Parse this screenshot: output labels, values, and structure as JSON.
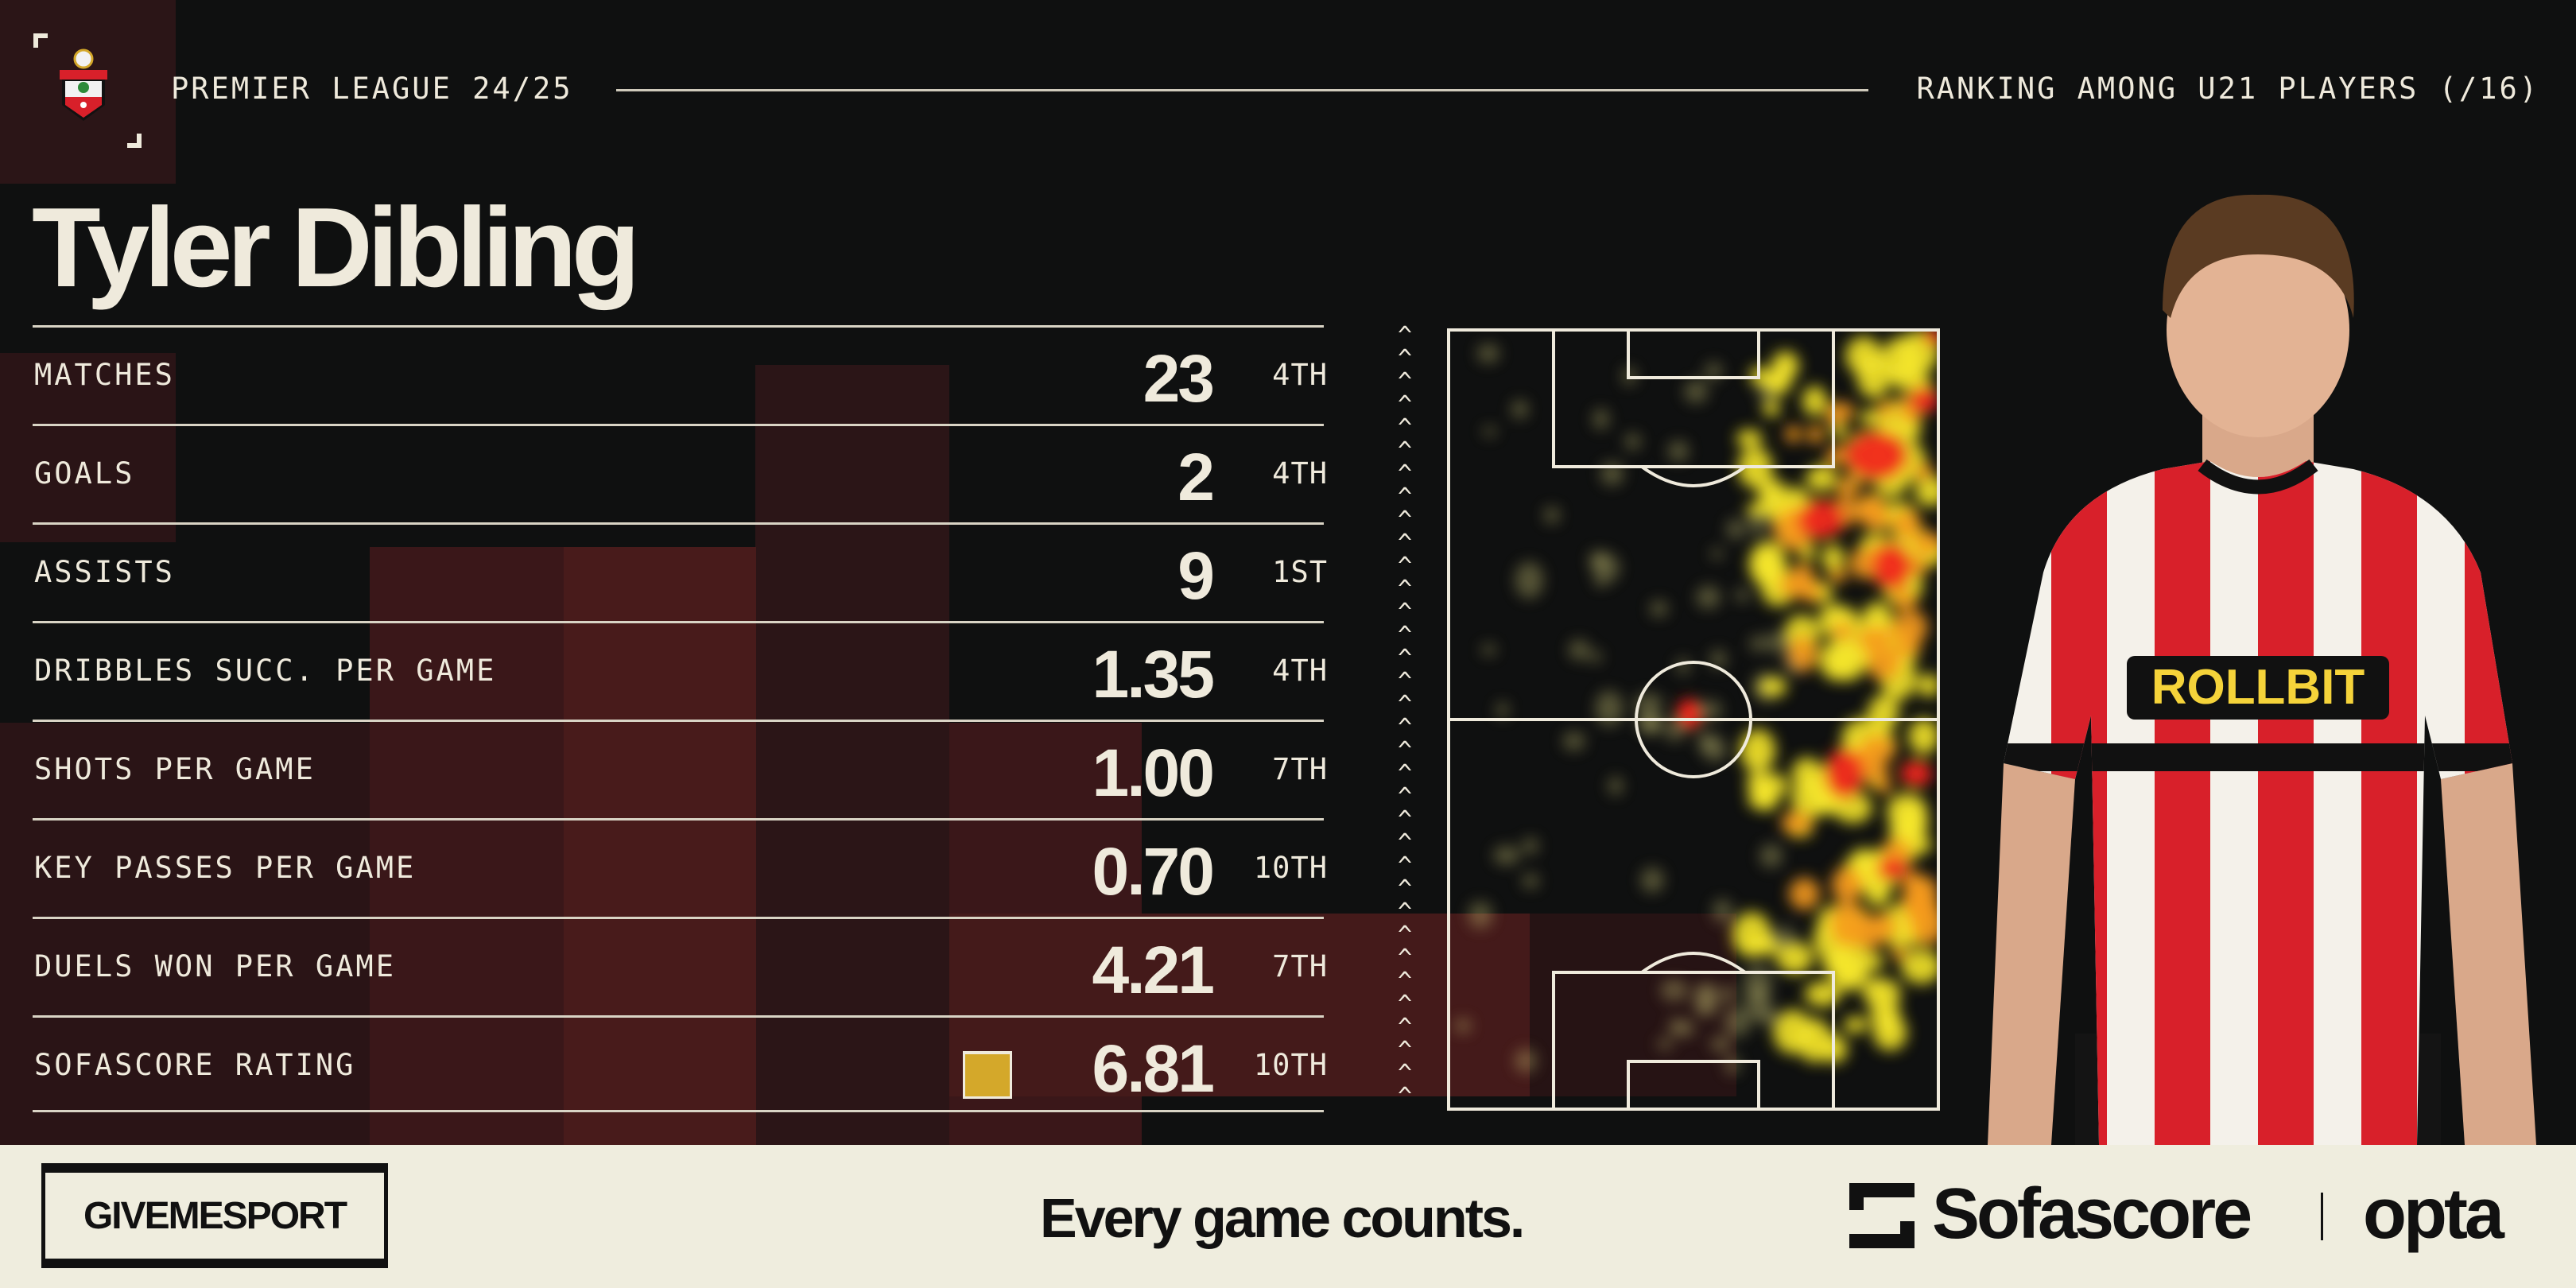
{
  "header": {
    "competition": "PREMIER LEAGUE 24/25",
    "ranking_title": "RANKING AMONG U21 PLAYERS (/16)",
    "club_crest": "southampton-crest"
  },
  "player": {
    "name": "Tyler Dibling"
  },
  "stats": [
    {
      "label": "MATCHES",
      "value": "23",
      "rank": "4TH"
    },
    {
      "label": "GOALS",
      "value": "2",
      "rank": "4TH"
    },
    {
      "label": "ASSISTS",
      "value": "9",
      "rank": "1ST"
    },
    {
      "label": "DRIBBLES SUCC. PER GAME",
      "value": "1.35",
      "rank": "4TH"
    },
    {
      "label": "SHOTS PER GAME",
      "value": "1.00",
      "rank": "7TH"
    },
    {
      "label": "KEY PASSES PER GAME",
      "value": "0.70",
      "rank": "10TH"
    },
    {
      "label": "DUELS WON PER GAME",
      "value": "4.21",
      "rank": "7TH"
    },
    {
      "label": "SOFASCORE RATING",
      "value": "6.81",
      "rank": "10TH",
      "rating_color": "#d4a82a"
    }
  ],
  "shirt": {
    "sponsor": "ROLLBIT"
  },
  "footer": {
    "publisher": "GIVEMESPORT",
    "tagline": "Every game counts.",
    "partner_1": "Sofascore",
    "partner_2": "opta"
  },
  "colors": {
    "background": "#0f1010",
    "accent_red": "#4a1a1a",
    "footer_bg": "#efedde",
    "text": "#efeadc"
  }
}
